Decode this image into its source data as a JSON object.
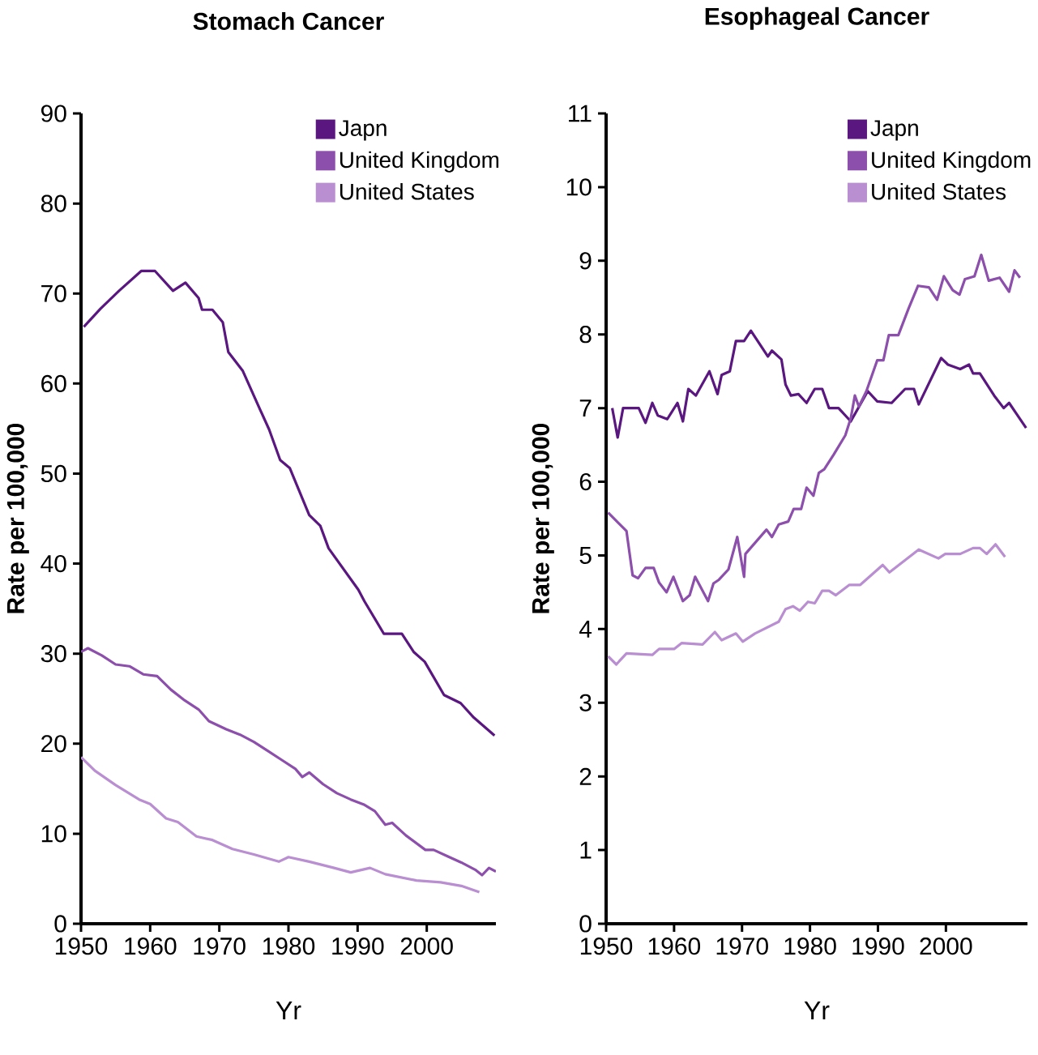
{
  "chart_data": [
    {
      "type": "line",
      "title": "Stomach Cancer",
      "xlabel": "Yr",
      "ylabel": "Rate per 100,000",
      "legend": "top right",
      "xlim": [
        1950,
        2010
      ],
      "xticks": [
        1950,
        1960,
        1970,
        1980,
        1990,
        2000
      ],
      "ylim": [
        0,
        90
      ],
      "yticks": [
        0,
        10,
        20,
        30,
        40,
        50,
        60,
        70,
        80,
        90
      ],
      "series": [
        {
          "name": "Japn",
          "color": "#5a1780",
          "x": [
            1950.4,
            1952.8,
            1955.5,
            1958.7,
            1960.7,
            1963.3,
            1965.1,
            1967,
            1967.5,
            1969,
            1970.5,
            1971.3,
            1973.4,
            1975.9,
            1977.2,
            1978.8,
            1980.2,
            1983,
            1984.6,
            1985.8,
            1990.1,
            1991,
            1993.8,
            1996.4,
            1998.1,
            1999.7,
            2002.5,
            2004.9,
            2006.8,
            2009.8
          ],
          "values": [
            66.3,
            68.3,
            70.3,
            72.5,
            72.5,
            70.3,
            71.2,
            69.5,
            68.2,
            68.2,
            66.8,
            63.5,
            61.4,
            57.1,
            54.9,
            51.5,
            50.6,
            45.4,
            44.2,
            41.7,
            37.1,
            35.8,
            32.2,
            32.2,
            30.2,
            29.1,
            25.4,
            24.5,
            22.9,
            20.9
          ]
        },
        {
          "name": "United Kingdom",
          "color": "#8c4fab",
          "x": [
            1950,
            1951,
            1953,
            1955,
            1957,
            1959,
            1961,
            1963,
            1965,
            1967,
            1968.5,
            1971,
            1973,
            1975,
            1977,
            1979,
            1981,
            1982,
            1983,
            1985,
            1987,
            1989,
            1991,
            1992.5,
            1994,
            1995,
            1997,
            1999.8,
            2001,
            2003,
            2005,
            2007,
            2008,
            2009,
            2010
          ],
          "values": [
            30.2,
            30.6,
            29.8,
            28.8,
            28.6,
            27.7,
            27.5,
            26,
            24.8,
            23.8,
            22.5,
            21.6,
            21,
            20.2,
            19.2,
            18.2,
            17.2,
            16.3,
            16.8,
            15.5,
            14.5,
            13.8,
            13.2,
            12.5,
            11,
            11.2,
            9.8,
            8.2,
            8.2,
            7.5,
            6.8,
            6,
            5.4,
            6.2,
            5.8
          ]
        },
        {
          "name": "United States",
          "color": "#b98fd1",
          "x": [
            1950,
            1952,
            1955,
            1958.4,
            1960,
            1962.3,
            1964,
            1966.7,
            1969,
            1971.9,
            1975,
            1978.6,
            1980,
            1983,
            1986.6,
            1989,
            1991.8,
            1994,
            1998.5,
            2002,
            2005,
            2007.6
          ],
          "values": [
            18.5,
            17,
            15.4,
            13.8,
            13.3,
            11.7,
            11.3,
            9.7,
            9.3,
            8.3,
            7.7,
            6.9,
            7.4,
            6.9,
            6.2,
            5.7,
            6.2,
            5.5,
            4.8,
            4.6,
            4.2,
            3.5
          ]
        }
      ]
    },
    {
      "type": "line",
      "title": "Esophageal Cancer",
      "xlabel": "Yr",
      "ylabel": "Rate per 100,000",
      "legend": "top right",
      "xlim": [
        1950,
        2012
      ],
      "xticks": [
        1950,
        1960,
        1970,
        1980,
        1990,
        2000
      ],
      "ylim": [
        0,
        11
      ],
      "yticks": [
        0,
        1,
        2,
        3,
        4,
        5,
        6,
        7,
        8,
        9,
        10,
        11
      ],
      "series": [
        {
          "name": "Japn",
          "color": "#5a1780",
          "x": [
            1950.9,
            1951.7,
            1952.5,
            1954.8,
            1955.8,
            1956.8,
            1957.6,
            1959,
            1960.5,
            1961.3,
            1962.1,
            1963.2,
            1965.2,
            1966.4,
            1967,
            1968.2,
            1969.1,
            1970.3,
            1971.3,
            1973.8,
            1974.4,
            1975.8,
            1976.4,
            1977.2,
            1978.3,
            1979.5,
            1980.7,
            1981.8,
            1982.8,
            1984.2,
            1986,
            1988.5,
            1989.9,
            1992,
            1994,
            1995.3,
            1996,
            1999.3,
            2000.3,
            2002.1,
            2003.4,
            2004,
            2005,
            2007.1,
            2008.5,
            2009.3,
            2011.8
          ],
          "values": [
            7.0,
            6.6,
            7.0,
            7.0,
            6.8,
            7.07,
            6.9,
            6.85,
            7.07,
            6.82,
            7.26,
            7.17,
            7.5,
            7.19,
            7.45,
            7.5,
            7.91,
            7.91,
            8.05,
            7.7,
            7.78,
            7.66,
            7.32,
            7.17,
            7.19,
            7.07,
            7.26,
            7.26,
            7.0,
            7.0,
            6.82,
            7.23,
            7.09,
            7.07,
            7.26,
            7.26,
            7.05,
            7.68,
            7.59,
            7.53,
            7.59,
            7.47,
            7.47,
            7.17,
            7.0,
            7.07,
            6.73
          ]
        },
        {
          "name": "United Kingdom",
          "color": "#8c4fab",
          "x": [
            1950.3,
            1953,
            1953.9,
            1954.7,
            1955.8,
            1957,
            1957.8,
            1958.9,
            1959.9,
            1961.3,
            1962.3,
            1963.1,
            1965,
            1965.8,
            1966.6,
            1968,
            1969.3,
            1970.3,
            1970.5,
            1973.6,
            1974.4,
            1975.4,
            1976.8,
            1977.6,
            1978.7,
            1979.5,
            1980.5,
            1981.3,
            1982.1,
            1983.5,
            1985.2,
            1986,
            1986.6,
            1987.2,
            1988.3,
            1989.9,
            1990.8,
            1991.6,
            1993,
            1994.5,
            1995.9,
            1997.5,
            1998.7,
            1999.7,
            2001,
            2002,
            2002.8,
            2004.2,
            2005.2,
            2006.3,
            2007.9,
            2009.3,
            2010.1,
            2010.9
          ],
          "values": [
            5.58,
            5.33,
            4.73,
            4.69,
            4.83,
            4.83,
            4.63,
            4.5,
            4.71,
            4.38,
            4.46,
            4.71,
            4.38,
            4.62,
            4.67,
            4.81,
            5.25,
            4.71,
            5.02,
            5.35,
            5.25,
            5.42,
            5.46,
            5.63,
            5.63,
            5.92,
            5.81,
            6.12,
            6.17,
            6.37,
            6.63,
            6.86,
            7.17,
            7.02,
            7.23,
            7.65,
            7.65,
            7.99,
            7.99,
            8.35,
            8.66,
            8.64,
            8.47,
            8.79,
            8.6,
            8.54,
            8.75,
            8.79,
            9.08,
            8.73,
            8.77,
            8.58,
            8.87,
            8.77
          ]
        },
        {
          "name": "United States",
          "color": "#b98fd1",
          "x": [
            1950.3,
            1951.5,
            1953,
            1956.8,
            1957.8,
            1960,
            1961.1,
            1964.2,
            1966,
            1967,
            1969.1,
            1970.1,
            1971.9,
            1975.4,
            1976.4,
            1977.5,
            1978.5,
            1979.7,
            1980.7,
            1981.8,
            1982.8,
            1983.8,
            1985.8,
            1987.4,
            1990.7,
            1991.7,
            1996,
            1998.9,
            1999.9,
            2002.1,
            2004,
            2005,
            2006,
            2007.3,
            2008.7
          ],
          "values": [
            3.63,
            3.52,
            3.67,
            3.65,
            3.73,
            3.73,
            3.81,
            3.79,
            3.96,
            3.85,
            3.94,
            3.83,
            3.94,
            4.1,
            4.27,
            4.31,
            4.25,
            4.37,
            4.35,
            4.52,
            4.52,
            4.46,
            4.6,
            4.6,
            4.87,
            4.77,
            5.08,
            4.96,
            5.02,
            5.02,
            5.1,
            5.1,
            5.02,
            5.15,
            4.98
          ]
        }
      ]
    }
  ]
}
